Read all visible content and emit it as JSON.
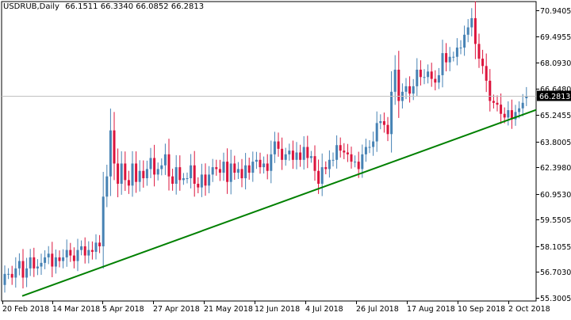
{
  "header": {
    "symbol_tf": "USDRUB,Daily",
    "ohlc": "66.1511 66.3340 66.0852 66.2813"
  },
  "chart_data": {
    "type": "candlestick",
    "symbol": "USDRUB",
    "timeframe": "Daily",
    "ylim": [
      55.3005,
      71.1
    ],
    "y_ticks": [
      "70.9405",
      "69.4955",
      "68.0930",
      "66.6480",
      "65.2455",
      "63.8005",
      "62.3980",
      "60.9530",
      "59.5505",
      "58.1055",
      "56.7030",
      "55.3005"
    ],
    "x_ticks": [
      "20 Feb 2018",
      "14 Mar 2018",
      "5 Apr 2018",
      "27 Apr 2018",
      "21 May 2018",
      "12 Jun 2018",
      "4 Jul 2018",
      "26 Jul 2018",
      "17 Aug 2018",
      "10 Sep 2018",
      "2 Oct 2018"
    ],
    "current_price": "66.2813",
    "colors": {
      "bull": "#4682b4",
      "bear": "#dc143c",
      "trendline": "#008000",
      "price_line": "#c0c0c0",
      "price_label_bg": "#000000",
      "price_label_text": "#ffffff"
    },
    "trendline": {
      "start": [
        "20 Feb 2018",
        55.4
      ],
      "end": [
        "3 Oct 2018",
        65.3
      ]
    },
    "close": [
      56.6,
      56.6,
      56.4,
      56.9,
      57.3,
      56.4,
      56.9,
      57.5,
      56.9,
      57.0,
      57.2,
      57.5,
      57.7,
      57.0,
      57.5,
      57.3,
      57.5,
      57.9,
      57.6,
      57.3,
      57.9,
      58.1,
      57.6,
      57.9,
      57.8,
      58.3,
      58.1,
      60.8,
      61.9,
      64.4,
      62.6,
      61.5,
      62.6,
      61.7,
      61.4,
      62.6,
      61.6,
      62.2,
      61.8,
      62.3,
      62.9,
      62.0,
      62.3,
      62.5,
      63.1,
      61.9,
      61.5,
      62.4,
      61.7,
      61.8,
      61.8,
      62.5,
      61.5,
      61.3,
      62.0,
      61.4,
      62.0,
      62.4,
      62.3,
      62.1,
      62.7,
      61.6,
      62.6,
      62.1,
      62.3,
      61.8,
      62.5,
      62.1,
      62.7,
      62.8,
      62.4,
      62.6,
      62.2,
      63.1,
      63.8,
      63.4,
      62.8,
      63.1,
      63.3,
      62.8,
      63.2,
      62.8,
      63.5,
      62.9,
      63.0,
      62.2,
      61.5,
      62.4,
      62.3,
      62.8,
      62.8,
      63.6,
      63.3,
      63.2,
      63.1,
      62.7,
      62.7,
      62.3,
      63.1,
      63.5,
      63.5,
      63.8,
      64.8,
      64.9,
      64.7,
      64.2,
      66.5,
      67.7,
      66.0,
      66.5,
      66.8,
      66.4,
      66.8,
      67.7,
      67.3,
      67.3,
      67.6,
      67.2,
      67.0,
      67.4,
      68.6,
      68.1,
      68.4,
      68.4,
      68.9,
      68.9,
      69.6,
      70.0,
      70.5,
      69.1,
      68.3,
      67.9,
      67.1,
      66.0,
      65.9,
      65.8,
      65.3,
      65.1,
      65.5,
      65.0,
      65.4,
      65.6,
      65.9,
      66.28
    ],
    "open": [
      56.0,
      56.6,
      56.6,
      56.4,
      56.9,
      57.3,
      56.4,
      56.9,
      57.5,
      56.9,
      57.0,
      57.2,
      57.5,
      57.7,
      57.0,
      57.5,
      57.3,
      57.5,
      57.9,
      57.6,
      57.3,
      57.9,
      58.1,
      57.6,
      57.9,
      57.8,
      58.3,
      58.1,
      60.8,
      61.9,
      64.4,
      62.6,
      61.5,
      62.6,
      61.7,
      61.4,
      62.6,
      61.6,
      62.2,
      61.8,
      62.3,
      62.9,
      62.0,
      62.3,
      62.5,
      63.1,
      61.9,
      61.5,
      62.4,
      61.7,
      61.8,
      61.8,
      62.5,
      61.5,
      61.3,
      62.0,
      61.4,
      62.0,
      62.4,
      62.3,
      62.1,
      62.7,
      61.6,
      62.6,
      62.1,
      62.3,
      61.8,
      62.5,
      62.1,
      62.7,
      62.8,
      62.4,
      62.6,
      62.2,
      63.1,
      63.8,
      63.4,
      62.8,
      63.1,
      63.3,
      62.8,
      63.2,
      62.8,
      63.5,
      62.9,
      63.0,
      62.2,
      61.5,
      62.4,
      62.3,
      62.8,
      62.8,
      63.6,
      63.3,
      63.2,
      63.1,
      62.7,
      62.7,
      62.3,
      63.1,
      63.5,
      63.5,
      63.8,
      64.8,
      64.9,
      64.7,
      64.2,
      66.5,
      67.7,
      66.0,
      66.5,
      66.8,
      66.4,
      66.8,
      67.7,
      67.3,
      67.3,
      67.6,
      67.2,
      67.0,
      67.4,
      68.6,
      68.1,
      68.4,
      68.4,
      68.9,
      68.9,
      69.6,
      70.0,
      70.5,
      69.1,
      68.3,
      67.9,
      67.1,
      66.0,
      65.9,
      65.8,
      65.3,
      65.1,
      65.5,
      65.0,
      65.4,
      65.6,
      66.15
    ]
  }
}
